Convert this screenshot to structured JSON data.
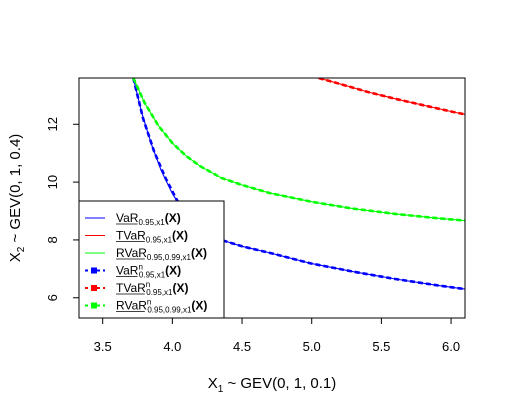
{
  "chart_data": {
    "type": "line",
    "xlabel": {
      "main": "X",
      "sub": "1",
      "rest": " ~ GEV(0, 1, 0.1)"
    },
    "ylabel": {
      "main": "X",
      "sub": "2",
      "rest": " ~ GEV(0, 1, 0.4)"
    },
    "xlim": [
      3.33,
      6.1
    ],
    "ylim": [
      5.3,
      13.6
    ],
    "x_ticks": [
      "3.5",
      "4.0",
      "4.5",
      "5.0",
      "5.5",
      "6.0"
    ],
    "x_tick_values": [
      3.5,
      4.0,
      4.5,
      5.0,
      5.5,
      6.0
    ],
    "y_ticks": [
      "6",
      "8",
      "10",
      "12"
    ],
    "y_tick_values": [
      6,
      8,
      10,
      12
    ],
    "grid": false,
    "legend_position": "bottom-left",
    "colors": {
      "var": "#0000ff",
      "tvar": "#ff0000",
      "rvar": "#00ff00"
    },
    "series": [
      {
        "name": "VaR",
        "legend": {
          "base": "VaR",
          "sup": "",
          "sub": "0.95,x1",
          "arg": "(X)"
        },
        "style": "solid",
        "color": "#0000ff",
        "x": [
          3.72,
          3.78,
          3.85,
          3.92,
          4.0,
          4.1,
          4.2,
          4.35,
          4.5,
          4.7,
          5.0,
          5.3,
          5.6,
          5.9,
          6.1
        ],
        "y": [
          13.6,
          12.4,
          11.3,
          10.4,
          9.6,
          8.85,
          8.35,
          8.0,
          7.78,
          7.55,
          7.18,
          6.9,
          6.65,
          6.43,
          6.3
        ]
      },
      {
        "name": "TVaR",
        "legend": {
          "base": "TVaR",
          "sup": "",
          "sub": "0.95,x1",
          "arg": "(X)"
        },
        "style": "solid",
        "color": "#ff0000",
        "x": [
          5.05,
          5.2,
          5.4,
          5.6,
          5.8,
          6.0,
          6.1
        ],
        "y": [
          13.6,
          13.4,
          13.12,
          12.88,
          12.66,
          12.44,
          12.34
        ]
      },
      {
        "name": "RVaR",
        "legend": {
          "base": "RVaR",
          "sup": "",
          "sub": "0.95,0.99,x1",
          "arg": "(X)"
        },
        "style": "solid",
        "color": "#00ff00",
        "x": [
          3.72,
          3.8,
          3.9,
          4.0,
          4.1,
          4.2,
          4.35,
          4.5,
          4.7,
          5.0,
          5.3,
          5.6,
          5.9,
          6.1
        ],
        "y": [
          13.6,
          12.75,
          11.95,
          11.35,
          10.9,
          10.55,
          10.15,
          9.9,
          9.62,
          9.32,
          9.08,
          8.9,
          8.75,
          8.67
        ]
      },
      {
        "name": "VaR^n",
        "legend": {
          "base": "VaR",
          "sup": "n",
          "sub": "0.95,x1",
          "arg": "(X)"
        },
        "style": "dashed-square",
        "color": "#0000ff",
        "x": [
          3.72,
          3.79,
          3.87,
          3.95,
          4.03,
          4.12,
          4.22,
          4.35,
          4.5,
          4.7,
          5.0,
          5.3,
          5.6,
          5.9,
          6.1
        ],
        "y": [
          13.6,
          12.2,
          11.05,
          10.15,
          9.4,
          8.8,
          8.38,
          8.0,
          7.78,
          7.55,
          7.18,
          6.9,
          6.65,
          6.43,
          6.3
        ]
      },
      {
        "name": "TVaR^n",
        "legend": {
          "base": "TVaR",
          "sup": "n",
          "sub": "0.95,x1",
          "arg": "(X)"
        },
        "style": "dashed-square",
        "color": "#ff0000",
        "x": [
          5.05,
          5.2,
          5.4,
          5.6,
          5.8,
          6.0,
          6.1
        ],
        "y": [
          13.6,
          13.4,
          13.12,
          12.88,
          12.66,
          12.44,
          12.34
        ]
      },
      {
        "name": "RVaR^n",
        "legend": {
          "base": "RVaR",
          "sup": "n",
          "sub": "0.95,0.99,x1",
          "arg": "(X)"
        },
        "style": "dashed-square",
        "color": "#00ff00",
        "x": [
          3.72,
          3.8,
          3.9,
          4.0,
          4.1,
          4.2,
          4.35,
          4.5,
          4.7,
          5.0,
          5.3,
          5.6,
          5.9,
          6.1
        ],
        "y": [
          13.6,
          12.75,
          11.95,
          11.35,
          10.9,
          10.55,
          10.15,
          9.9,
          9.62,
          9.32,
          9.08,
          8.9,
          8.75,
          8.67
        ]
      }
    ]
  }
}
